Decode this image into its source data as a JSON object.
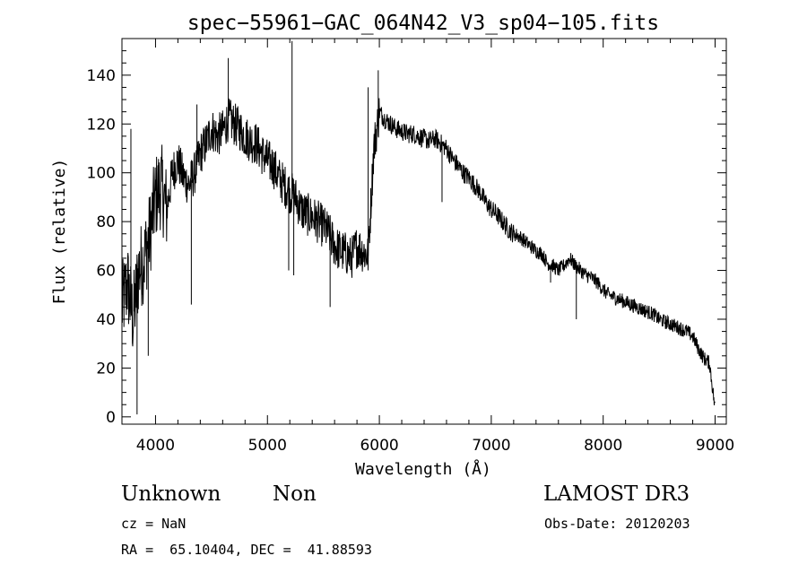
{
  "chart_data": {
    "type": "line",
    "title": "spec−55961−GAC_064N42_V3_sp04−105.fits",
    "xlabel": "Wavelength (Å)",
    "ylabel": "Flux (relative)",
    "xlim": [
      3700,
      9100
    ],
    "ylim": [
      -3,
      155
    ],
    "xticks": [
      4000,
      5000,
      6000,
      7000,
      8000,
      9000
    ],
    "yticks": [
      0,
      20,
      40,
      60,
      80,
      100,
      120,
      140
    ],
    "grid": false,
    "legend": "none",
    "line_color": "#000000",
    "series": [
      {
        "x": [
          3700,
          3750,
          3800,
          3850,
          3900,
          3950,
          4000,
          4050,
          4100,
          4150,
          4200,
          4250,
          4300,
          4350,
          4400,
          4450,
          4500,
          4550,
          4600,
          4650,
          4700,
          4750,
          4800,
          4850,
          4900,
          4950,
          5000,
          5050,
          5100,
          5150,
          5200,
          5250,
          5300,
          5350,
          5400,
          5450,
          5500,
          5550,
          5600,
          5650,
          5700,
          5750,
          5800,
          5850,
          5900,
          5950,
          6000,
          6050,
          6100,
          6150,
          6200,
          6250,
          6300,
          6350,
          6400,
          6450,
          6500,
          6550,
          6600,
          6650,
          6700,
          6750,
          6800,
          6850,
          6900,
          6950,
          7000,
          7050,
          7100,
          7150,
          7200,
          7250,
          7300,
          7350,
          7400,
          7450,
          7500,
          7550,
          7600,
          7650,
          7700,
          7750,
          7800,
          7850,
          7900,
          7950,
          8000,
          8050,
          8100,
          8150,
          8200,
          8250,
          8300,
          8350,
          8400,
          8450,
          8500,
          8550,
          8600,
          8650,
          8700,
          8750,
          8800,
          8850,
          8900,
          8950,
          9000
        ],
        "values": [
          45,
          55,
          40,
          60,
          65,
          75,
          90,
          95,
          85,
          100,
          105,
          98,
          95,
          100,
          108,
          112,
          118,
          115,
          117,
          122,
          120,
          118,
          115,
          113,
          112,
          108,
          105,
          103,
          98,
          95,
          92,
          90,
          85,
          83,
          82,
          80,
          78,
          75,
          70,
          68,
          67,
          65,
          70,
          68,
          66,
          110,
          125,
          122,
          120,
          118,
          117,
          116,
          116,
          115,
          114,
          113,
          114,
          112,
          110,
          106,
          103,
          100,
          98,
          95,
          92,
          88,
          85,
          83,
          80,
          77,
          75,
          74,
          72,
          70,
          68,
          67,
          63,
          62,
          60,
          62,
          65,
          62,
          60,
          58,
          57,
          55,
          52,
          50,
          49,
          48,
          47,
          46,
          45,
          44,
          43,
          42,
          40,
          39,
          38,
          37,
          36,
          35,
          33,
          28,
          24,
          22,
          3
        ]
      }
    ],
    "spikes": [
      {
        "x": 3780,
        "value": 118
      },
      {
        "x": 3835,
        "value": 1
      },
      {
        "x": 3935,
        "value": 25
      },
      {
        "x": 4320,
        "value": 46
      },
      {
        "x": 4370,
        "value": 128
      },
      {
        "x": 4650,
        "value": 147
      },
      {
        "x": 5190,
        "value": 60
      },
      {
        "x": 5220,
        "value": 154
      },
      {
        "x": 5235,
        "value": 58
      },
      {
        "x": 5560,
        "value": 45
      },
      {
        "x": 5900,
        "value": 135
      },
      {
        "x": 5990,
        "value": 142
      },
      {
        "x": 6560,
        "value": 88
      },
      {
        "x": 7530,
        "value": 55
      },
      {
        "x": 7760,
        "value": 40
      }
    ]
  },
  "info": {
    "object_class": "Unknown",
    "object_subclass": "Non",
    "survey": "LAMOST DR3",
    "cz": "cz = NaN",
    "obs_date": "Obs-Date: 20120203",
    "coords": "RA =  65.10404, DEC =  41.88593"
  }
}
